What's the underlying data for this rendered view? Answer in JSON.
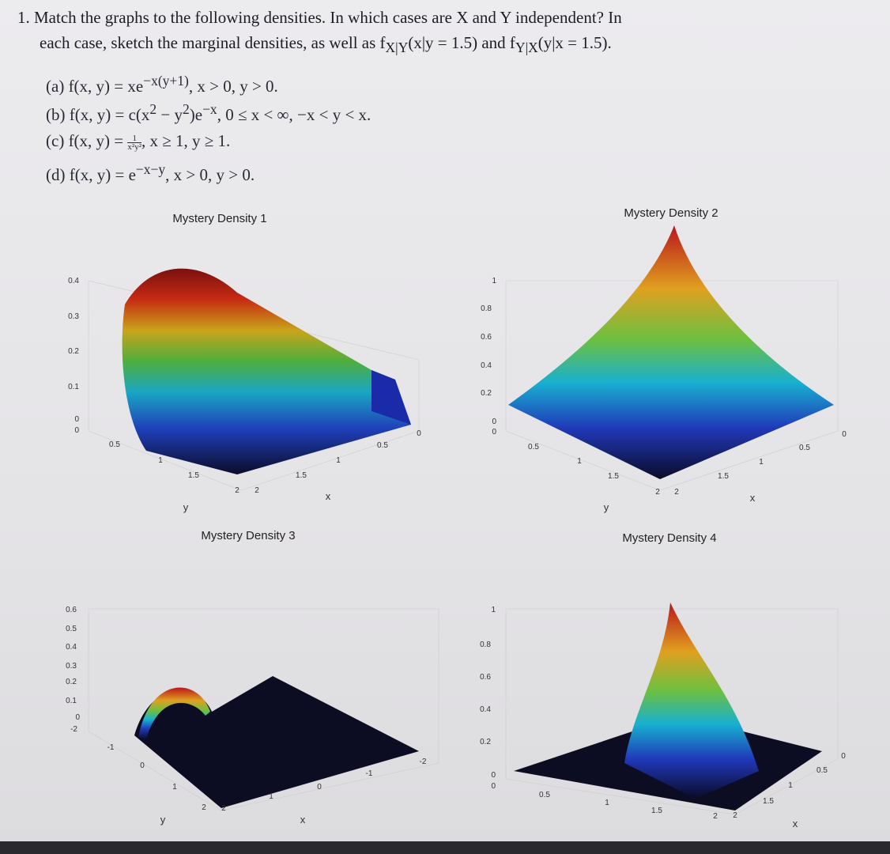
{
  "problem": {
    "number": "1.",
    "line1": "Match the graphs to the following densities. In which cases are X and Y independent? In",
    "line2": [
      {
        "t": "each case, sketch the marginal densities, as well as f"
      },
      {
        "sub": "X|Y"
      },
      {
        "t": "(x|y = 1.5) and f"
      },
      {
        "sub": "Y|X"
      },
      {
        "t": "(y|x = 1.5)."
      }
    ]
  },
  "parts": [
    {
      "label": "(a)",
      "pieces": [
        {
          "t": "f(x, y) = xe"
        },
        {
          "sup": "−x(y+1)"
        },
        {
          "t": ",    x > 0, y > 0."
        }
      ]
    },
    {
      "label": "(b)",
      "pieces": [
        {
          "t": "f(x, y) = c(x"
        },
        {
          "sup": "2"
        },
        {
          "t": " − y"
        },
        {
          "sup": "2"
        },
        {
          "t": ")e"
        },
        {
          "sup": "−x"
        },
        {
          "t": ",    0 ≤ x < ∞, −x < y < x."
        }
      ]
    },
    {
      "label": "(c)",
      "pieces": [
        {
          "t": "f(x, y) = "
        },
        {
          "frac": [
            "1",
            "x²y²"
          ]
        },
        {
          "t": ", x ≥ 1, y ≥ 1."
        }
      ]
    },
    {
      "label": "(d)",
      "pieces": [
        {
          "t": "f(x, y) = e"
        },
        {
          "sup": "−x−y"
        },
        {
          "t": ",    x > 0, y > 0."
        }
      ]
    }
  ],
  "plots": [
    {
      "title": "Mystery Density 1",
      "z_ticks": [
        "0.4",
        "0.3",
        "0.2",
        "0.1",
        "0",
        "0"
      ],
      "y_ticks": [
        "0.5",
        "1",
        "1.5",
        "2"
      ],
      "x_ticks": [
        "2",
        "1.5",
        "1",
        "0.5",
        "0"
      ],
      "y_label": "y",
      "x_label": "x"
    },
    {
      "title": "Mystery Density 2",
      "z_ticks": [
        "1",
        "0.8",
        "0.6",
        "0.4",
        "0.2",
        "0",
        "0"
      ],
      "y_ticks": [
        "0.5",
        "1",
        "1.5",
        "2"
      ],
      "x_ticks": [
        "2",
        "1.5",
        "1",
        "0.5",
        "0"
      ],
      "y_label": "y",
      "x_label": "x"
    },
    {
      "title": "Mystery Density 3",
      "z_ticks": [
        "0.6",
        "0.5",
        "0.4",
        "0.3",
        "0.2",
        "0.1",
        "0",
        "-2"
      ],
      "y_ticks": [
        "-1",
        "0",
        "1",
        "2"
      ],
      "x_ticks": [
        "2",
        "1",
        "0",
        "-1",
        "-2"
      ],
      "y_label": "y",
      "x_label": "x"
    },
    {
      "title": "Mystery Density 4",
      "z_ticks": [
        "1",
        "0.8",
        "0.6",
        "0.4",
        "0.2",
        "0",
        "0"
      ],
      "y_ticks": [
        "0.5",
        "1",
        "1.5",
        "2"
      ],
      "x_ticks": [
        "2",
        "1.5",
        "1",
        "0.5",
        "0"
      ],
      "x_label": "x"
    }
  ]
}
